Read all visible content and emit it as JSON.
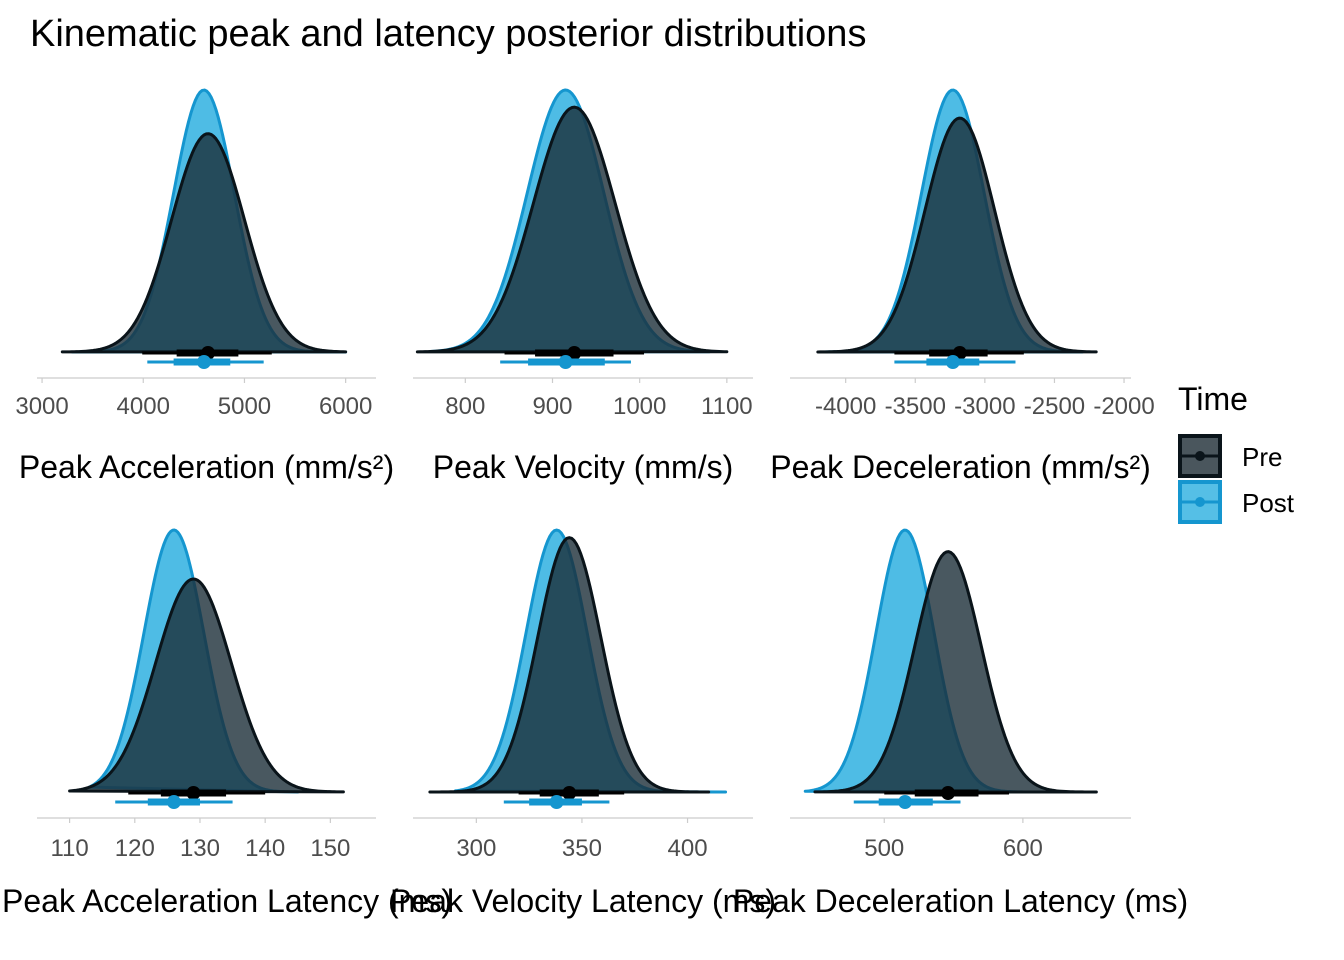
{
  "title": "Kinematic peak and latency posterior distributions",
  "legend": {
    "title": "Time",
    "placement": "right",
    "items": [
      {
        "label": "Pre",
        "color": "#0d1c26"
      },
      {
        "label": "Post",
        "color": "#1ba1d8"
      }
    ]
  },
  "colors": {
    "pre_fill": "#1b2e38",
    "pre_line": "#0a141a",
    "post_fill": "#2fb0e0",
    "post_line": "#1596cf",
    "axis": "#cccccc",
    "tick_text": "#4d4d4d"
  },
  "chart_data": [
    {
      "type": "area",
      "xlabel": "Peak Acceleration (mm/s²)",
      "xlim": [
        2950,
        6300
      ],
      "ticks": [
        3000,
        4000,
        5000,
        6000
      ],
      "tick_labels": [
        "3000",
        "4000",
        "5000",
        "6000"
      ],
      "series": [
        {
          "name": "Pre",
          "mean": 4640,
          "sd": 360,
          "range": [
            3200,
            6000
          ],
          "interval_66": [
            4330,
            4940
          ],
          "interval_95": [
            3990,
            5270
          ],
          "peak_density_rel": 1.0
        },
        {
          "name": "Post",
          "mean": 4600,
          "sd": 300,
          "range": [
            3300,
            6000
          ],
          "interval_66": [
            4300,
            4860
          ],
          "interval_95": [
            4040,
            5190
          ],
          "peak_density_rel": 1.2
        }
      ]
    },
    {
      "type": "area",
      "xlabel": "Peak Velocity (mm/s)",
      "xlim": [
        740,
        1130
      ],
      "ticks": [
        800,
        900,
        1000,
        1100
      ],
      "tick_labels": [
        "800",
        "900",
        "1000",
        "1100"
      ],
      "series": [
        {
          "name": "Pre",
          "mean": 925,
          "sd": 47,
          "range": [
            745,
            1100
          ],
          "interval_66": [
            880,
            970
          ],
          "interval_95": [
            845,
            1005
          ],
          "peak_density_rel": 1.0
        },
        {
          "name": "Post",
          "mean": 915,
          "sd": 44,
          "range": [
            760,
            1080
          ],
          "interval_66": [
            872,
            960
          ],
          "interval_95": [
            840,
            990
          ],
          "peak_density_rel": 1.07
        }
      ]
    },
    {
      "type": "area",
      "xlabel": "Peak Deceleration (mm/s²)",
      "xlim": [
        -4400,
        -1950
      ],
      "ticks": [
        -4000,
        -3500,
        -3000,
        -2500,
        -2000
      ],
      "tick_labels": [
        "-4000",
        "-3500",
        "-3000",
        "-2500",
        "-2000"
      ],
      "series": [
        {
          "name": "Pre",
          "mean": -3180,
          "sd": 250,
          "range": [
            -4200,
            -2200
          ],
          "interval_66": [
            -3400,
            -2980
          ],
          "interval_95": [
            -3650,
            -2720
          ],
          "peak_density_rel": 1.0
        },
        {
          "name": "Post",
          "mean": -3230,
          "sd": 225,
          "range": [
            -4150,
            -2300
          ],
          "interval_66": [
            -3420,
            -3040
          ],
          "interval_95": [
            -3650,
            -2780
          ],
          "peak_density_rel": 1.12
        }
      ]
    },
    {
      "type": "area",
      "xlabel": "Peak Acceleration Latency (ms)",
      "xlim": [
        105,
        157
      ],
      "ticks": [
        110,
        120,
        130,
        140,
        150
      ],
      "tick_labels": [
        "110",
        "120",
        "130",
        "140",
        "150"
      ],
      "series": [
        {
          "name": "Pre",
          "mean": 129,
          "sd": 5.8,
          "range": [
            110,
            152
          ],
          "interval_66": [
            124,
            134
          ],
          "interval_95": [
            119,
            140
          ],
          "peak_density_rel": 1.0
        },
        {
          "name": "Post",
          "mean": 126,
          "sd": 4.6,
          "range": [
            113,
            145
          ],
          "interval_66": [
            122,
            130
          ],
          "interval_95": [
            117,
            135
          ],
          "peak_density_rel": 1.23
        }
      ]
    },
    {
      "type": "area",
      "xlabel": "Peak Velocity Latency (ms)",
      "xlim": [
        270,
        431
      ],
      "ticks": [
        300,
        350,
        400
      ],
      "tick_labels": [
        "300",
        "350",
        "400"
      ],
      "series": [
        {
          "name": "Pre",
          "mean": 344,
          "sd": 15,
          "range": [
            278,
            410
          ],
          "interval_66": [
            330,
            358
          ],
          "interval_95": [
            320,
            370
          ],
          "peak_density_rel": 1.0
        },
        {
          "name": "Post",
          "mean": 338,
          "sd": 14.5,
          "range": [
            290,
            418
          ],
          "interval_66": [
            325,
            350
          ],
          "interval_95": [
            313,
            363
          ],
          "peak_density_rel": 1.03
        }
      ]
    },
    {
      "type": "area",
      "xlabel": "Peak Deceleration Latency (ms)",
      "xlim": [
        432,
        678
      ],
      "ticks": [
        500,
        600
      ],
      "tick_labels": [
        "500",
        "600"
      ],
      "series": [
        {
          "name": "Pre",
          "mean": 546,
          "sd": 24,
          "range": [
            450,
            653
          ],
          "interval_66": [
            522,
            568
          ],
          "interval_95": [
            500,
            590
          ],
          "peak_density_rel": 1.0
        },
        {
          "name": "Post",
          "mean": 515,
          "sd": 21,
          "range": [
            443,
            625
          ],
          "interval_66": [
            496,
            535
          ],
          "interval_95": [
            478,
            555
          ],
          "peak_density_rel": 1.09
        }
      ]
    }
  ]
}
